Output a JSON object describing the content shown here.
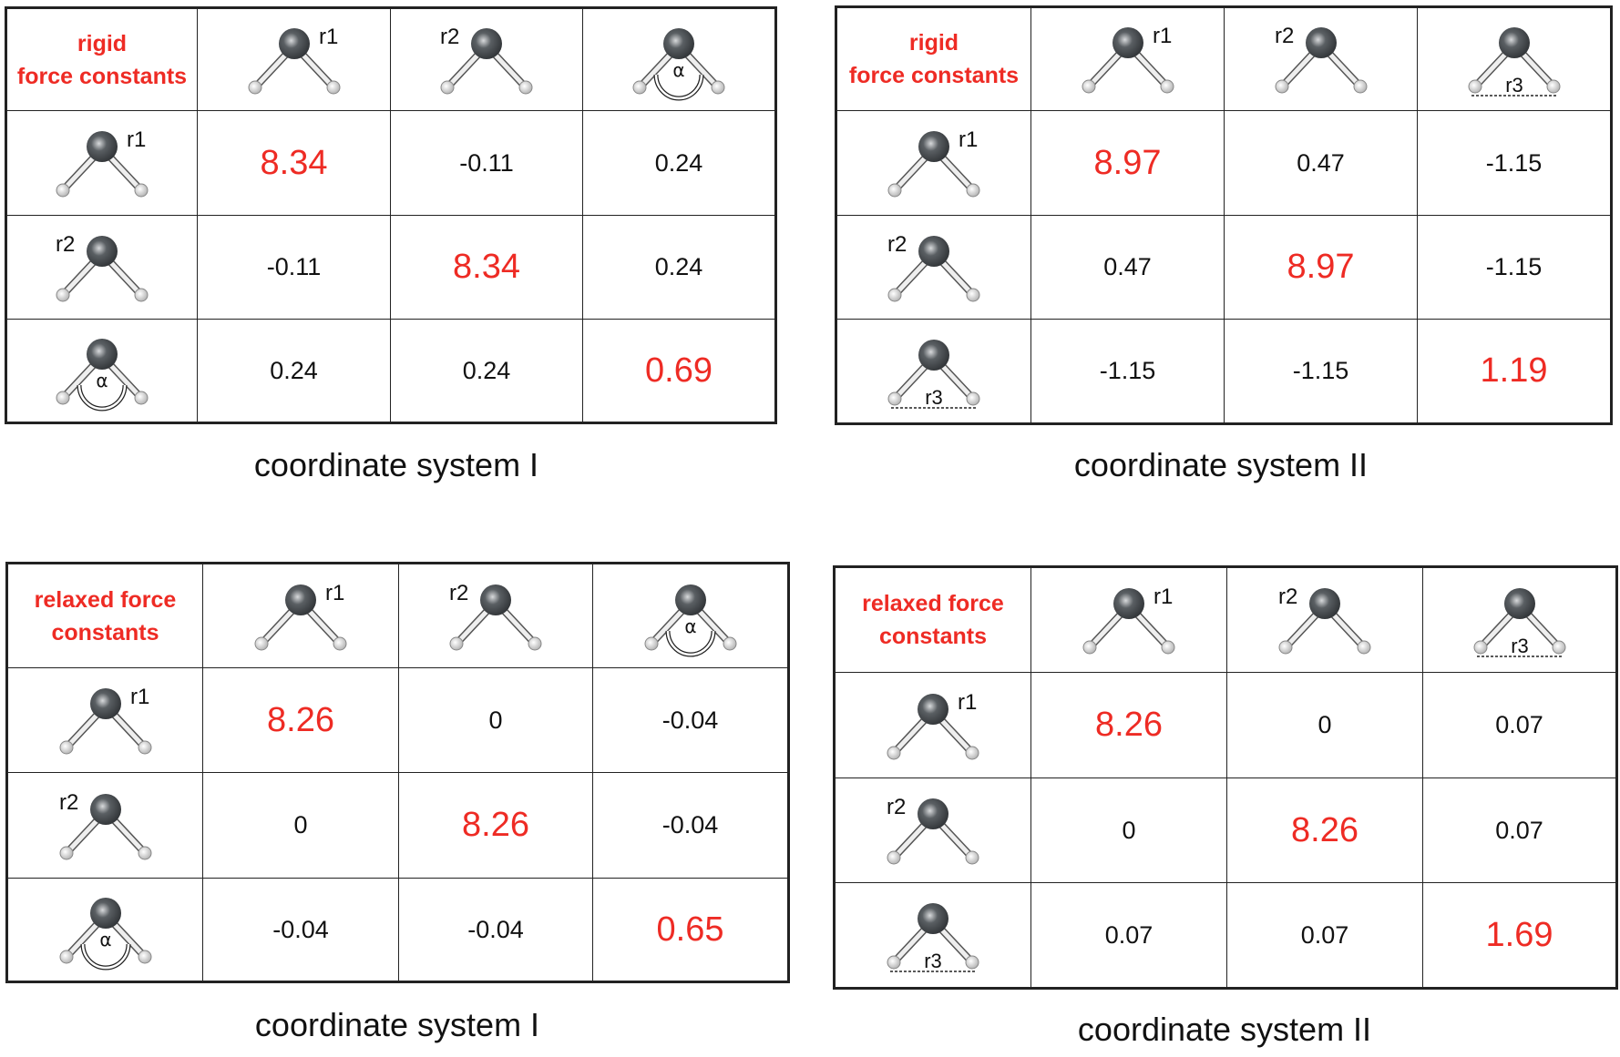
{
  "panels": [
    {
      "corner_label": [
        "rigid",
        "force constants"
      ],
      "coordinates": [
        "r1",
        "r2",
        "α"
      ],
      "values": [
        [
          "8.34",
          "-0.11",
          "0.24"
        ],
        [
          "-0.11",
          "8.34",
          "0.24"
        ],
        [
          "0.24",
          "0.24",
          "0.69"
        ]
      ],
      "caption": "coordinate system I"
    },
    {
      "corner_label": [
        "rigid",
        "force constants"
      ],
      "coordinates": [
        "r1",
        "r2",
        "r3"
      ],
      "values": [
        [
          "8.97",
          "0.47",
          "-1.15"
        ],
        [
          "0.47",
          "8.97",
          "-1.15"
        ],
        [
          "-1.15",
          "-1.15",
          "1.19"
        ]
      ],
      "caption": "coordinate system II"
    },
    {
      "corner_label": [
        "relaxed force",
        "constants"
      ],
      "coordinates": [
        "r1",
        "r2",
        "α"
      ],
      "values": [
        [
          "8.26",
          "0",
          "-0.04"
        ],
        [
          "0",
          "8.26",
          "-0.04"
        ],
        [
          "-0.04",
          "-0.04",
          "0.65"
        ]
      ],
      "caption": "coordinate system I"
    },
    {
      "corner_label": [
        "relaxed force",
        "constants"
      ],
      "coordinates": [
        "r1",
        "r2",
        "r3"
      ],
      "values": [
        [
          "8.26",
          "0",
          "0.07"
        ],
        [
          "0",
          "8.26",
          "0.07"
        ],
        [
          "0.07",
          "0.07",
          "1.69"
        ]
      ],
      "caption": "coordinate system II"
    }
  ],
  "colors": {
    "diagonal": "#ee2b24",
    "corner_label": "#ee2b24",
    "oxygen": "#5a5f63",
    "hydrogen": "#f2f2f2"
  }
}
